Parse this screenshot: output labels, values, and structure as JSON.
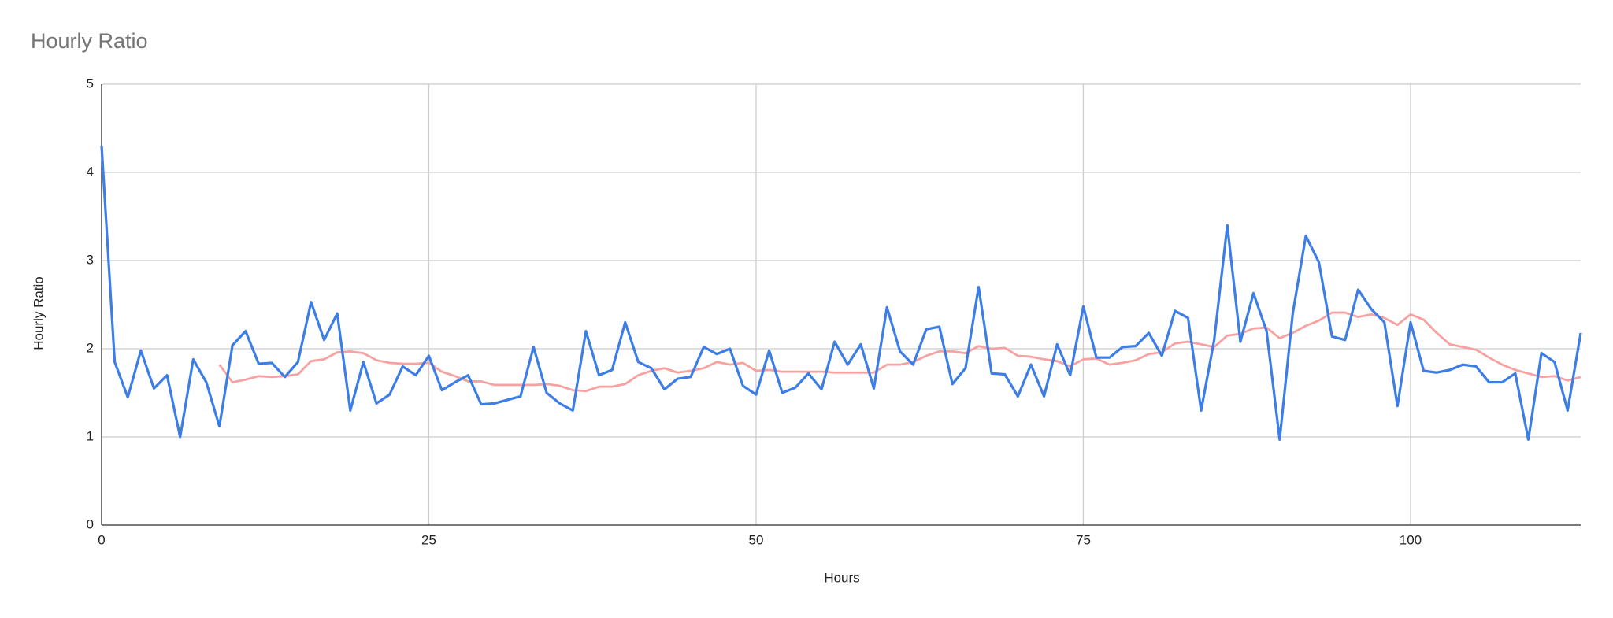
{
  "chart_data": {
    "type": "line",
    "title": "Hourly Ratio",
    "x_label": "Hours",
    "y_label": "Hourly Ratio",
    "x": [
      0,
      1,
      2,
      3,
      4,
      5,
      6,
      7,
      8,
      9,
      10,
      11,
      12,
      13,
      14,
      15,
      16,
      17,
      18,
      19,
      20,
      21,
      22,
      23,
      24,
      25,
      26,
      27,
      28,
      29,
      30,
      31,
      32,
      33,
      34,
      35,
      36,
      37,
      38,
      39,
      40,
      41,
      42,
      43,
      44,
      45,
      46,
      47,
      48,
      49,
      50,
      51,
      52,
      53,
      54,
      55,
      56,
      57,
      58,
      59,
      60,
      61,
      62,
      63,
      64,
      65,
      66,
      67,
      68,
      69,
      70,
      71,
      72,
      73,
      74,
      75,
      76,
      77,
      78,
      79,
      80,
      81,
      82,
      83,
      84,
      85,
      86,
      87,
      88,
      89,
      90,
      91,
      92,
      93,
      94,
      95,
      96,
      97,
      98,
      99,
      100,
      101,
      102,
      103,
      104,
      105,
      106,
      107,
      108,
      109,
      110,
      111,
      112,
      113
    ],
    "series": [
      {
        "color": "#3d7ee6",
        "values": [
          4.3,
          1.85,
          1.45,
          1.98,
          1.55,
          1.7,
          1.0,
          1.88,
          1.62,
          1.12,
          2.04,
          2.2,
          1.83,
          1.84,
          1.68,
          1.85,
          2.53,
          2.1,
          2.4,
          1.3,
          1.85,
          1.38,
          1.48,
          1.8,
          1.7,
          1.92,
          1.53,
          1.62,
          1.7,
          1.37,
          1.38,
          1.42,
          1.46,
          2.02,
          1.5,
          1.38,
          1.3,
          2.2,
          1.7,
          1.76,
          2.3,
          1.85,
          1.78,
          1.54,
          1.66,
          1.68,
          2.02,
          1.94,
          2.0,
          1.58,
          1.48,
          1.98,
          1.5,
          1.56,
          1.72,
          1.54,
          2.08,
          1.82,
          2.05,
          1.55,
          2.47,
          1.97,
          1.82,
          2.22,
          2.25,
          1.6,
          1.78,
          2.7,
          1.72,
          1.71,
          1.46,
          1.82,
          1.46,
          2.05,
          1.7,
          2.48,
          1.9,
          1.9,
          2.02,
          2.03,
          2.18,
          1.92,
          2.43,
          2.35,
          1.3,
          2.1,
          3.4,
          2.08,
          2.63,
          2.2,
          0.97,
          2.4,
          3.28,
          2.98,
          2.14,
          2.1,
          2.67,
          2.45,
          2.3,
          1.35,
          2.3,
          1.75,
          1.73,
          1.76,
          1.82,
          1.8,
          1.62,
          1.62,
          1.72,
          0.97,
          1.95,
          1.85,
          1.3,
          2.18
        ]
      },
      {
        "color": "#f7a1a1",
        "values": [
          null,
          null,
          null,
          null,
          null,
          null,
          null,
          null,
          null,
          1.82,
          1.62,
          1.65,
          1.69,
          1.68,
          1.69,
          1.71,
          1.86,
          1.88,
          1.96,
          1.97,
          1.95,
          1.87,
          1.84,
          1.83,
          1.83,
          1.84,
          1.74,
          1.69,
          1.63,
          1.63,
          1.59,
          1.59,
          1.59,
          1.59,
          1.6,
          1.58,
          1.53,
          1.52,
          1.57,
          1.57,
          1.6,
          1.7,
          1.75,
          1.78,
          1.73,
          1.75,
          1.78,
          1.85,
          1.82,
          1.84,
          1.75,
          1.76,
          1.74,
          1.74,
          1.74,
          1.74,
          1.73,
          1.73,
          1.73,
          1.73,
          1.82,
          1.82,
          1.85,
          1.92,
          1.97,
          1.97,
          1.95,
          2.03,
          2.0,
          2.01,
          1.92,
          1.91,
          1.88,
          1.86,
          1.8,
          1.88,
          1.89,
          1.82,
          1.84,
          1.87,
          1.94,
          1.96,
          2.06,
          2.08,
          2.05,
          2.02,
          2.15,
          2.17,
          2.23,
          2.24,
          2.12,
          2.18,
          2.26,
          2.32,
          2.41,
          2.41,
          2.36,
          2.39,
          2.35,
          2.27,
          2.39,
          2.33,
          2.18,
          2.05,
          2.02,
          1.99,
          1.9,
          1.82,
          1.76,
          1.72,
          1.68,
          1.69,
          1.64,
          1.68
        ]
      }
    ],
    "xlim": [
      0,
      113
    ],
    "xticks": [
      0,
      25,
      50,
      75,
      100
    ],
    "ylim": [
      0,
      5
    ],
    "yticks": [
      0,
      1,
      2,
      3,
      4,
      5
    ],
    "grid": true
  }
}
